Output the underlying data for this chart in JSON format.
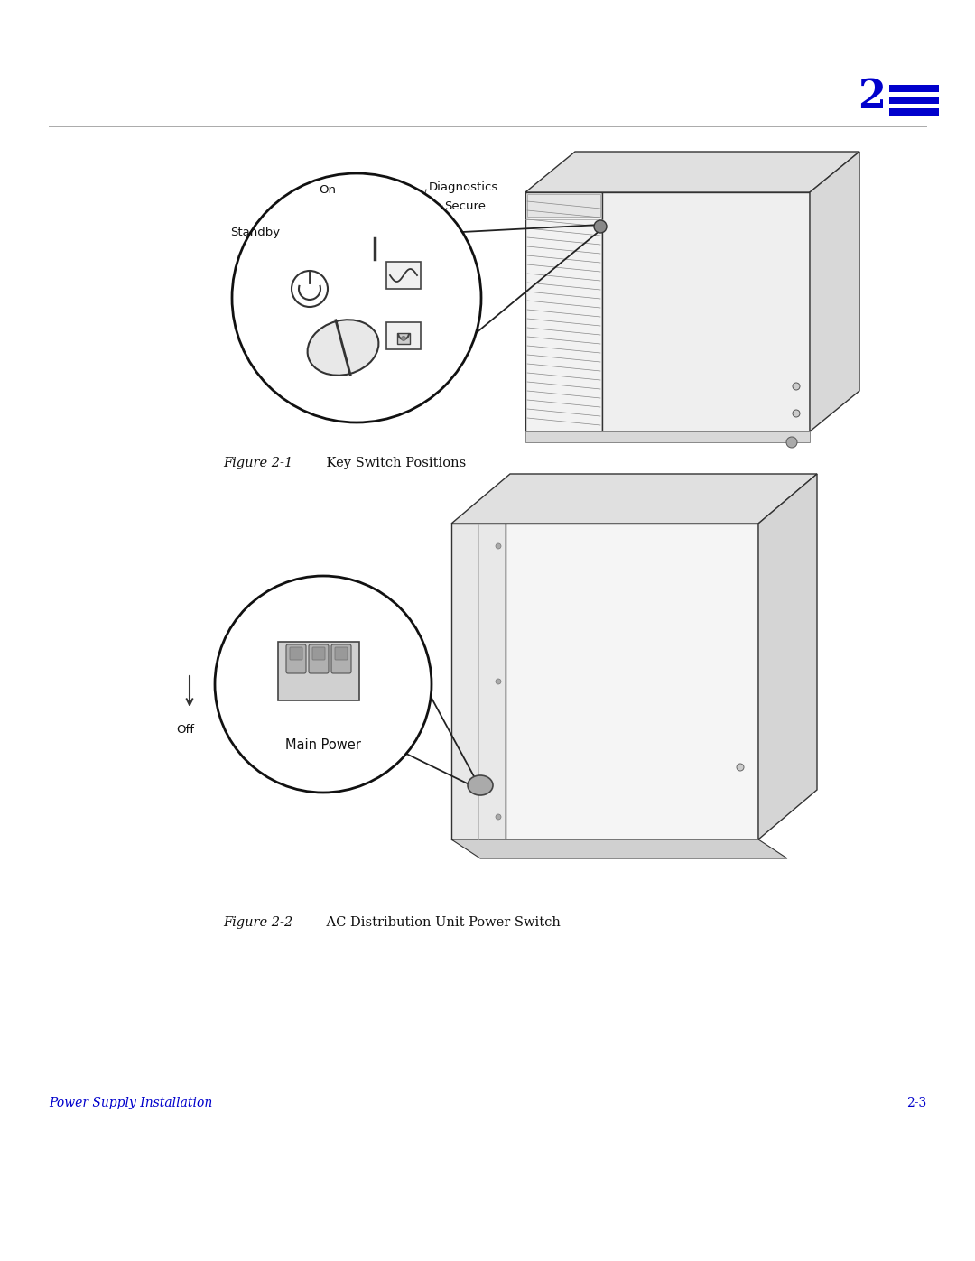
{
  "bg_color": "#ffffff",
  "chapter_num": "2",
  "chapter_color": "#0000cc",
  "footer_left": "Power Supply Installation",
  "footer_right": "2-3",
  "footer_color": "#0000cc",
  "fig1_caption_italic": "Figure 2-1",
  "fig1_caption_normal": "    Key Switch Positions",
  "fig2_caption_italic": "Figure 2-2",
  "fig2_caption_normal": "    AC Distribution Unit Power Switch",
  "caption_color": "#111111",
  "dc": "#333333",
  "label_on": "On",
  "label_diagnostics": "Diagnostics",
  "label_secure": "Secure",
  "label_standby": "Standby",
  "label_off": "Off",
  "label_main_power": "Main Power"
}
